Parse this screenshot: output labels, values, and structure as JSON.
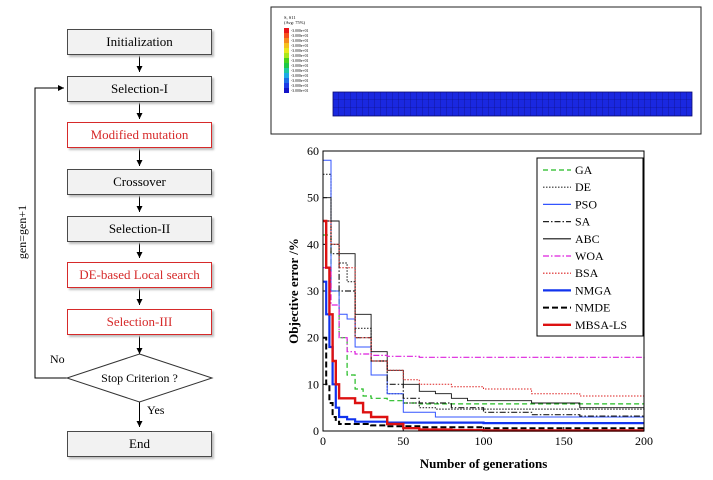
{
  "flowchart": {
    "steps": [
      {
        "label": "Initialization",
        "highlight": false
      },
      {
        "label": "Selection-I",
        "highlight": false
      },
      {
        "label": "Modified mutation",
        "highlight": true
      },
      {
        "label": "Crossover",
        "highlight": false
      },
      {
        "label": "Selection-II",
        "highlight": false
      },
      {
        "label": "DE-based Local search",
        "highlight": true
      },
      {
        "label": "Selection-III",
        "highlight": true
      }
    ],
    "decision": "Stop Criterion ?",
    "yes_label": "Yes",
    "no_label": "No",
    "loop_label": "gen=gen+1",
    "end": "End"
  },
  "fe_legend": {
    "title": "S, S11",
    "subtitle": "(Avg: 75%)",
    "values": [
      "-3.000e+01",
      "-3.000e+01",
      "-3.000e+01",
      "-3.000e+01",
      "-3.000e+01",
      "-3.000e+01",
      "-3.000e+01",
      "-3.000e+01",
      "-3.000e+01",
      "-3.000e+01",
      "-3.000e+01",
      "-3.000e+01",
      "-3.000e+01"
    ],
    "colors": [
      "#e8141a",
      "#f5501e",
      "#f5891e",
      "#f5c01e",
      "#e8e81e",
      "#a8e81e",
      "#46d21e",
      "#1ec846",
      "#1ec8a0",
      "#1eaae6",
      "#1e6ee6",
      "#1e3ce6",
      "#1414c8"
    ]
  },
  "chart_data": {
    "type": "line",
    "xlabel": "Number of generations",
    "ylabel": "Objective error /%",
    "xlim": [
      0,
      200
    ],
    "ylim": [
      0,
      60
    ],
    "xticks": [
      0,
      50,
      100,
      150,
      200
    ],
    "yticks": [
      0,
      10,
      20,
      30,
      40,
      50,
      60
    ],
    "legend_position": "top-right",
    "series": [
      {
        "name": "GA",
        "color": "#22bb22",
        "dash": "5,3",
        "width": 1.2,
        "x": [
          0,
          5,
          10,
          15,
          20,
          25,
          30,
          40,
          50,
          60,
          200
        ],
        "y": [
          42,
          30,
          20,
          12,
          9,
          7.5,
          7,
          6.5,
          6,
          5.8,
          5.8
        ]
      },
      {
        "name": "DE",
        "color": "#333333",
        "dash": "1.5,1.5",
        "width": 1.2,
        "x": [
          0,
          5,
          10,
          15,
          20,
          30,
          40,
          50,
          60,
          70,
          200
        ],
        "y": [
          55,
          40,
          36,
          32,
          22,
          15,
          8,
          6,
          5,
          4.7,
          4.5
        ]
      },
      {
        "name": "PSO",
        "color": "#3355ff",
        "dash": "",
        "width": 1,
        "x": [
          0,
          5,
          10,
          15,
          20,
          30,
          40,
          50,
          70,
          100,
          200
        ],
        "y": [
          58,
          30,
          25,
          24,
          18,
          12,
          8,
          4,
          3,
          3,
          3
        ]
      },
      {
        "name": "SA",
        "color": "#222222",
        "dash": "6,2,1.5,2",
        "width": 1.2,
        "x": [
          0,
          5,
          10,
          20,
          30,
          40,
          50,
          60,
          80,
          100,
          130,
          160,
          200
        ],
        "y": [
          45,
          38,
          30,
          20,
          15,
          10,
          7,
          6,
          5,
          4,
          3.5,
          3.2,
          3
        ]
      },
      {
        "name": "ABC",
        "color": "#111111",
        "dash": "",
        "width": 0.9,
        "x": [
          0,
          5,
          10,
          20,
          30,
          40,
          50,
          60,
          70,
          80,
          90,
          100,
          130,
          160,
          200
        ],
        "y": [
          50,
          45,
          38,
          25,
          17,
          13,
          10,
          8.5,
          8,
          7,
          6.5,
          6.5,
          6,
          5,
          5
        ]
      },
      {
        "name": "WOA",
        "color": "#dd22dd",
        "dash": "6,2,1.5,2",
        "width": 1.2,
        "x": [
          0,
          5,
          10,
          15,
          20,
          30,
          40,
          60,
          200
        ],
        "y": [
          35,
          27,
          20,
          17,
          16.5,
          16.2,
          16,
          15.8,
          15.6
        ]
      },
      {
        "name": "BSA",
        "color": "#dd2222",
        "dash": "1.5,1.5",
        "width": 1,
        "x": [
          0,
          5,
          10,
          20,
          30,
          40,
          50,
          60,
          80,
          100,
          130,
          160,
          200
        ],
        "y": [
          45,
          40,
          35,
          20,
          15,
          13,
          11,
          10,
          9.5,
          9,
          8,
          7.5,
          7.5
        ]
      },
      {
        "name": "NMGA",
        "color": "#1133ee",
        "dash": "",
        "width": 2.2,
        "x": [
          0,
          2,
          4,
          6,
          8,
          10,
          15,
          20,
          30,
          40,
          60,
          100,
          200
        ],
        "y": [
          32,
          25,
          18,
          10,
          5,
          3,
          2.5,
          2,
          2,
          1.8,
          1.8,
          1.7,
          1.7
        ]
      },
      {
        "name": "NMDE",
        "color": "#000000",
        "dash": "6,3",
        "width": 2,
        "x": [
          0,
          2,
          4,
          6,
          8,
          10,
          20,
          30,
          40,
          60,
          100,
          200
        ],
        "y": [
          20,
          10,
          6,
          3,
          2,
          1.5,
          1.5,
          1.2,
          1,
          0.8,
          0.6,
          0.5
        ]
      },
      {
        "name": "MBSA-LS",
        "color": "#dd1111",
        "dash": "",
        "width": 2.4,
        "x": [
          0,
          2,
          4,
          6,
          8,
          10,
          15,
          20,
          25,
          30,
          40,
          50,
          60,
          80,
          100,
          200
        ],
        "y": [
          45,
          35,
          25,
          15,
          10,
          7,
          7,
          6,
          4,
          3,
          1.5,
          0.6,
          0.3,
          0.2,
          0.1,
          0.1
        ]
      }
    ]
  }
}
